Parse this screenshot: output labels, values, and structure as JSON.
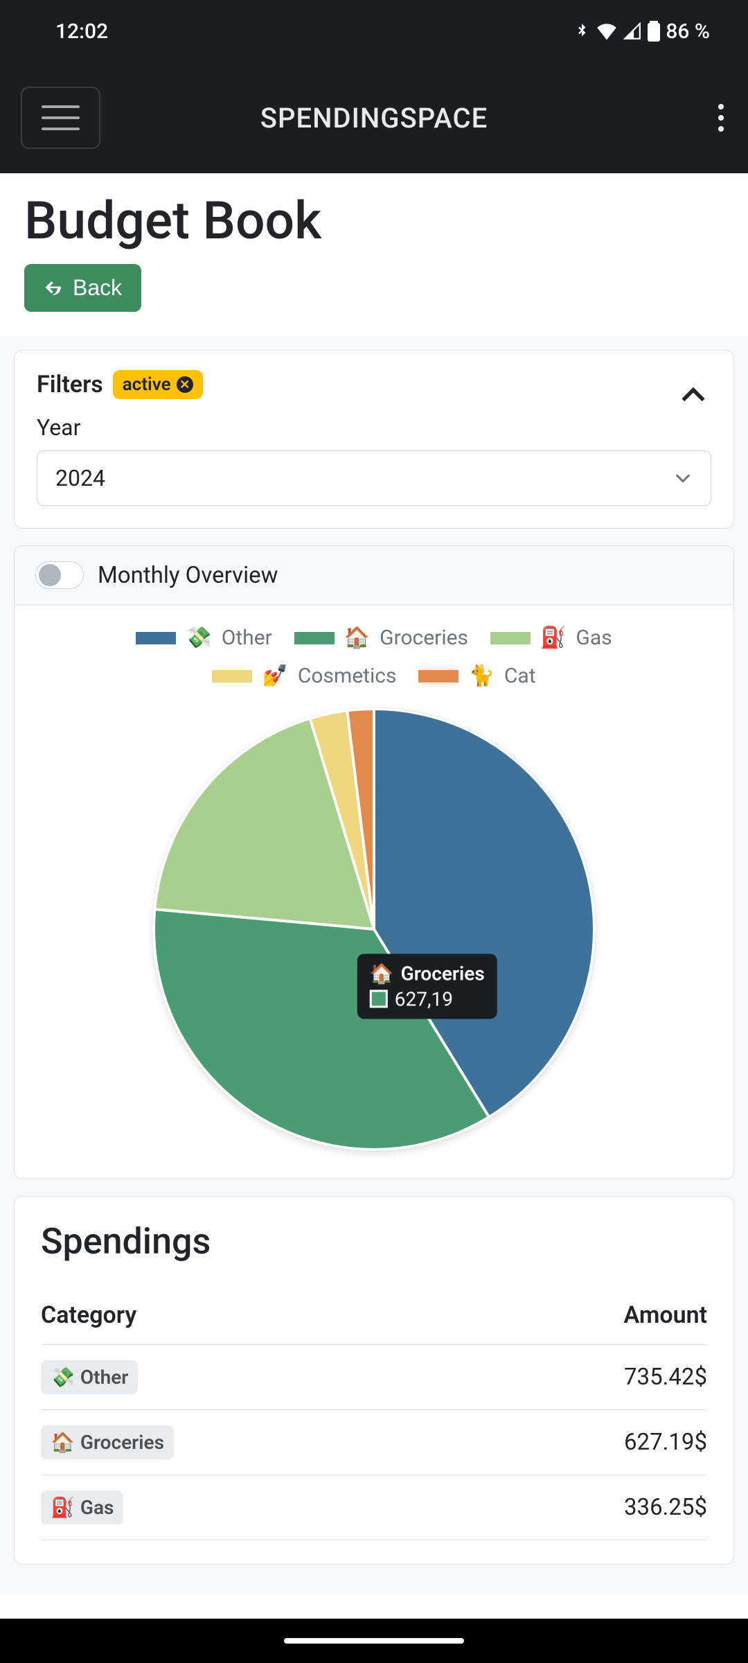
{
  "status": {
    "time": "12:02",
    "battery": "86 %"
  },
  "app": {
    "title": "SPENDINGSPACE"
  },
  "page": {
    "title": "Budget Book",
    "back_label": "Back"
  },
  "filters": {
    "title": "Filters",
    "badge": "active",
    "year_label": "Year",
    "year_value": "2024"
  },
  "overview": {
    "title": "Monthly Overview",
    "toggle_on": false
  },
  "chart": {
    "type": "pie",
    "background_color": "#ffffff",
    "slice_border_color": "#ffffff",
    "slice_border_width": 4,
    "start_angle_deg": 0,
    "slices": [
      {
        "label": "Other",
        "emoji": "💸",
        "value": 735.42,
        "color": "#3f729b",
        "angle_deg": 148.5
      },
      {
        "label": "Groceries",
        "emoji": "🏠",
        "value": 627.19,
        "color": "#4a9d72",
        "angle_deg": 126.7
      },
      {
        "label": "Gas",
        "emoji": "⛽",
        "value": 336.25,
        "color": "#a9cf8f",
        "angle_deg": 67.9
      },
      {
        "label": "Cosmetics",
        "emoji": "💅",
        "value": 49.06,
        "color": "#f0d77f",
        "angle_deg": 9.9
      },
      {
        "label": "Cat",
        "emoji": "🐈",
        "value": 34.51,
        "color": "#e28a4b",
        "angle_deg": 7.0
      }
    ],
    "legend_label_color": "#6c757d",
    "legend_swatch_w": 58,
    "legend_swatch_h": 18,
    "tooltip": {
      "bg": "#1a1d21",
      "text_color": "#ffffff",
      "emoji": "🏠",
      "label": "Groceries",
      "value": "627,19",
      "swatch_border": "#ffffff",
      "swatch_fill": "#4a9d72"
    }
  },
  "spendings": {
    "title": "Spendings",
    "col_category": "Category",
    "col_amount": "Amount",
    "rows": [
      {
        "emoji": "💸",
        "label": "Other",
        "amount": "735.42$"
      },
      {
        "emoji": "🏠",
        "label": "Groceries",
        "amount": "627.19$"
      },
      {
        "emoji": "⛽",
        "label": "Gas",
        "amount": "336.25$"
      }
    ]
  },
  "colors": {
    "status_bg": "#1a1d21",
    "accent_green": "#3d8b5f",
    "badge_yellow": "#ffc107",
    "card_border": "#dee2e6",
    "page_bg": "#f8f9fa"
  }
}
